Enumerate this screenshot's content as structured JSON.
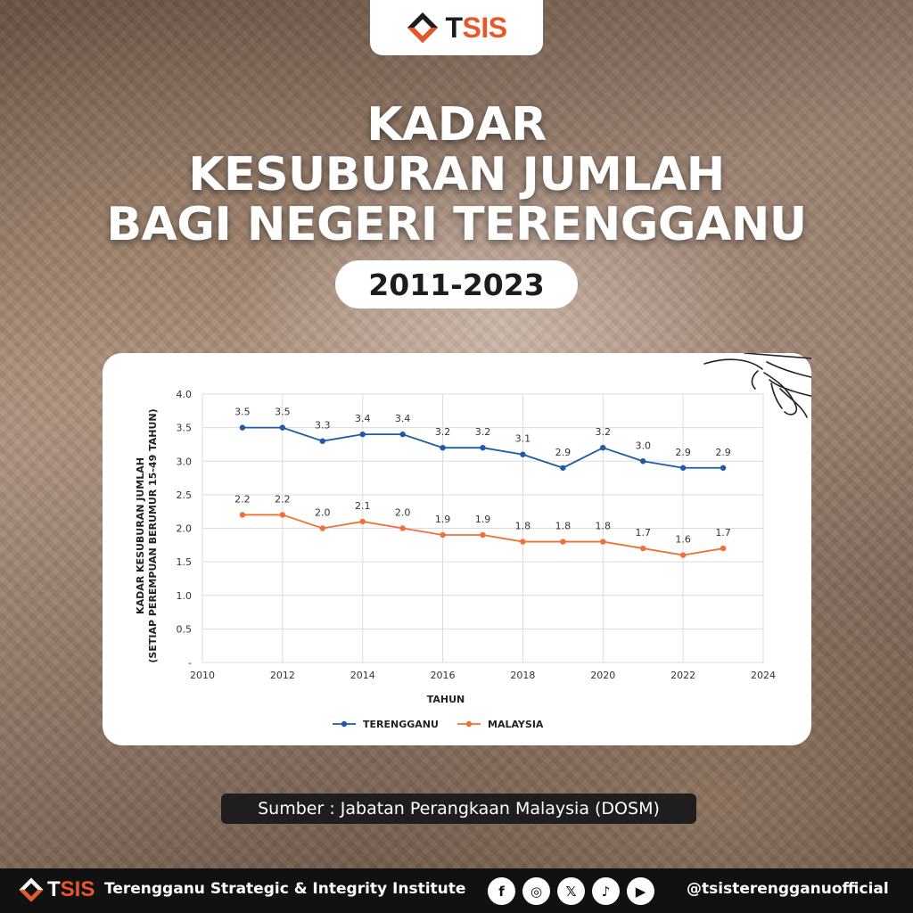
{
  "header": {
    "logo_text_t": "T",
    "logo_text_rest": "SIS",
    "title_lines": [
      "KADAR",
      "KESUBURAN JUMLAH",
      "BAGI NEGERI TERENGGANU"
    ],
    "year_range": "2011-2023"
  },
  "source": "Sumber : Jabatan Perangkaan Malaysia (DOSM)",
  "footer": {
    "logo_text_t": "T",
    "logo_text_rest": "SIS",
    "org_name": "Terengganu Strategic & Integrity Institute",
    "social": [
      {
        "icon": "facebook-icon",
        "glyph": "f"
      },
      {
        "icon": "instagram-icon",
        "glyph": "◎"
      },
      {
        "icon": "x-icon",
        "glyph": "𝕏"
      },
      {
        "icon": "tiktok-icon",
        "glyph": "♪"
      },
      {
        "icon": "youtube-icon",
        "glyph": "▶"
      }
    ],
    "handle": "@tsisterengganuofficial"
  },
  "colors": {
    "brand_orange": "#e8572a",
    "terengganu_series": "#1f5aa6",
    "malaysia_series": "#f0703a"
  },
  "chart_data": {
    "type": "line",
    "title": "",
    "xlabel": "TAHUN",
    "ylabel": "KADAR KESUBURAN JUMLAH",
    "ylabel_sub": "(SETIAP PEREMPUAN BERUMUR 15-49 TAHUN)",
    "xlim": [
      2010,
      2024
    ],
    "ylim": [
      0,
      4.0
    ],
    "x_ticks": [
      "2010",
      "2012",
      "2014",
      "2016",
      "2018",
      "2020",
      "2022",
      "2024"
    ],
    "y_ticks": [
      "-",
      "0.5",
      "1.0",
      "1.5",
      "2.0",
      "2.5",
      "3.0",
      "3.5",
      "4.0"
    ],
    "grid": true,
    "legend_position": "bottom-center",
    "x": [
      2011,
      2012,
      2013,
      2014,
      2015,
      2016,
      2017,
      2018,
      2019,
      2020,
      2021,
      2022,
      2023
    ],
    "series": [
      {
        "name": "TERENGGANU",
        "color": "#1f5aa6",
        "values": [
          3.5,
          3.5,
          3.3,
          3.4,
          3.4,
          3.2,
          3.2,
          3.1,
          2.9,
          3.2,
          3.0,
          2.9,
          2.9
        ],
        "labels": [
          "3.5",
          "3.5",
          "3.3",
          "3.4",
          "3.4",
          "3.2",
          "3.2",
          "3.1",
          "2.9",
          "3.2",
          "3.0",
          "2.9",
          "2.9"
        ]
      },
      {
        "name": "MALAYSIA",
        "color": "#f0703a",
        "values": [
          2.2,
          2.2,
          2.0,
          2.1,
          2.0,
          1.9,
          1.9,
          1.8,
          1.8,
          1.8,
          1.7,
          1.6,
          1.7
        ],
        "labels": [
          "2.2",
          "2.2",
          "2.0",
          "2.1",
          "2.0",
          "1.9",
          "1.9",
          "1.8",
          "1.8",
          "1.8",
          "1.7",
          "1.6",
          "1.7"
        ]
      }
    ]
  }
}
